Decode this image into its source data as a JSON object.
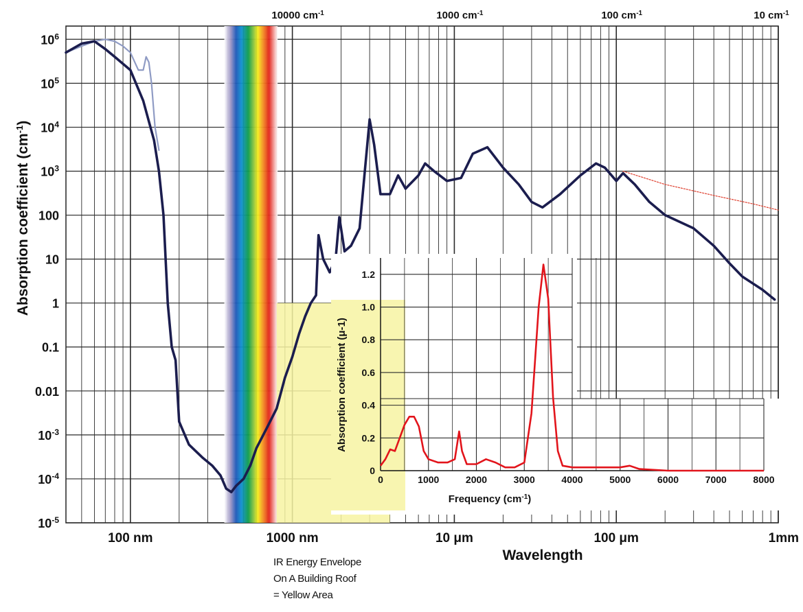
{
  "chart_data": [
    {
      "type": "line",
      "title": "",
      "xlabel": "Wavelength",
      "ylabel": "Absorption coefficient (cm-1)",
      "x_scale": "log",
      "y_scale": "log",
      "xlim_m": [
        4e-08,
        0.001
      ],
      "ylim_cm_inv": [
        1e-05,
        2000000.0
      ],
      "grid": true,
      "x_ticks": [
        {
          "value_m": 1e-07,
          "label": "100 nm"
        },
        {
          "value_m": 1e-06,
          "label": "1000 nm"
        },
        {
          "value_m": 1e-05,
          "label": "10 μm"
        },
        {
          "value_m": 0.0001,
          "label": "100 μm"
        },
        {
          "value_m": 0.001,
          "label": "1mm"
        }
      ],
      "top_axis_ticks": [
        {
          "value_m": 1e-06,
          "label": "10000 cm-1"
        },
        {
          "value_m": 1e-05,
          "label": "1000 cm-1"
        },
        {
          "value_m": 0.0001,
          "label": "100 cm-1"
        },
        {
          "value_m": 0.001,
          "label": "10 cm-1"
        }
      ],
      "y_ticks": [
        {
          "value": 1000000.0,
          "base": "10",
          "exp": "6",
          "label": ""
        },
        {
          "value": 100000.0,
          "base": "10",
          "exp": "5",
          "label": ""
        },
        {
          "value": 10000.0,
          "base": "10",
          "exp": "4",
          "label": ""
        },
        {
          "value": 1000.0,
          "base": "10",
          "exp": "3",
          "label": ""
        },
        {
          "value": 100,
          "label": "100"
        },
        {
          "value": 10,
          "label": "10"
        },
        {
          "value": 1,
          "label": "1"
        },
        {
          "value": 0.1,
          "label": "0.1"
        },
        {
          "value": 0.01,
          "label": "0.01"
        },
        {
          "value": 0.001,
          "base": "10",
          "exp": "-3",
          "label": ""
        },
        {
          "value": 0.0001,
          "base": "10",
          "exp": "-4",
          "label": ""
        },
        {
          "value": 1e-05,
          "base": "10",
          "exp": "-5",
          "label": ""
        }
      ],
      "visible_band_m": [
        3.8e-07,
        7.5e-07
      ],
      "yellow_area": {
        "x_m": [
          8e-07,
          4e-06
        ],
        "y_top": 1
      },
      "series": [
        {
          "name": "",
          "color": "#1b1d4e",
          "points": [
            [
              4e-08,
              500000.0
            ],
            [
              5e-08,
              800000.0
            ],
            [
              6e-08,
              900000.0
            ],
            [
              7e-08,
              600000.0
            ],
            [
              8e-08,
              400000.0
            ],
            [
              1e-07,
              200000.0
            ],
            [
              1.2e-07,
              40000.0
            ],
            [
              1.4e-07,
              5000.0
            ],
            [
              1.5e-07,
              1000.0
            ],
            [
              1.6e-07,
              100
            ],
            [
              1.7e-07,
              1
            ],
            [
              1.8e-07,
              0.1
            ],
            [
              1.9e-07,
              0.05
            ],
            [
              2e-07,
              0.002
            ],
            [
              2.3e-07,
              0.0006
            ],
            [
              2.8e-07,
              0.0003
            ],
            [
              3.2e-07,
              0.0002
            ],
            [
              3.6e-07,
              0.00012
            ],
            [
              3.9e-07,
              6e-05
            ],
            [
              4.2e-07,
              5e-05
            ],
            [
              4.5e-07,
              7e-05
            ],
            [
              5e-07,
              0.0001
            ],
            [
              5.5e-07,
              0.0002
            ],
            [
              6e-07,
              0.0005
            ],
            [
              7e-07,
              0.0015
            ],
            [
              8e-07,
              0.004
            ],
            [
              9e-07,
              0.02
            ],
            [
              1e-06,
              0.06
            ],
            [
              1.1e-06,
              0.2
            ],
            [
              1.2e-06,
              0.5
            ],
            [
              1.3e-06,
              1
            ],
            [
              1.4e-06,
              1.5
            ],
            [
              1.45e-06,
              35
            ],
            [
              1.55e-06,
              10
            ],
            [
              1.7e-06,
              5
            ],
            [
              1.85e-06,
              10
            ],
            [
              1.95e-06,
              90
            ],
            [
              2.1e-06,
              15
            ],
            [
              2.3e-06,
              20
            ],
            [
              2.6e-06,
              50
            ],
            [
              2.8e-06,
              1000
            ],
            [
              3e-06,
              15000.0
            ],
            [
              3.2e-06,
              4000
            ],
            [
              3.5e-06,
              300
            ],
            [
              4e-06,
              300
            ],
            [
              4.5e-06,
              800
            ],
            [
              5e-06,
              400
            ],
            [
              6e-06,
              800
            ],
            [
              6.6e-06,
              1500
            ],
            [
              7.5e-06,
              1000
            ],
            [
              9e-06,
              600
            ],
            [
              1.1e-05,
              700
            ],
            [
              1.3e-05,
              2500
            ],
            [
              1.6e-05,
              3500
            ],
            [
              2e-05,
              1200
            ],
            [
              2.5e-05,
              500
            ],
            [
              3e-05,
              200
            ],
            [
              3.5e-05,
              150
            ],
            [
              4.5e-05,
              300
            ],
            [
              6e-05,
              800
            ],
            [
              7.5e-05,
              1500
            ],
            [
              8.5e-05,
              1200
            ],
            [
              0.0001,
              600
            ],
            [
              0.00011,
              900
            ],
            [
              0.00013,
              500
            ],
            [
              0.00016,
              200
            ],
            [
              0.0002,
              100
            ],
            [
              0.0003,
              50
            ],
            [
              0.0004,
              20
            ],
            [
              0.0005,
              8
            ],
            [
              0.0006,
              4
            ],
            [
              0.0008,
              2
            ],
            [
              0.00095,
              1.2
            ]
          ]
        },
        {
          "name": "",
          "color": "#8f9bc4",
          "points": [
            [
              4e-08,
              500000.0
            ],
            [
              5e-08,
              700000.0
            ],
            [
              6e-08,
              900000.0
            ],
            [
              7e-08,
              1000000.0
            ],
            [
              8e-08,
              900000.0
            ],
            [
              9e-08,
              700000.0
            ],
            [
              1e-07,
              500000.0
            ],
            [
              1.12e-07,
              200000.0
            ],
            [
              1.2e-07,
              200000.0
            ],
            [
              1.25e-07,
              400000.0
            ],
            [
              1.3e-07,
              300000.0
            ],
            [
              1.35e-07,
              100000.0
            ],
            [
              1.42e-07,
              10000.0
            ],
            [
              1.5e-07,
              3000
            ]
          ]
        },
        {
          "name": "",
          "color": "#e04a3a",
          "dashed": true,
          "points": [
            [
              0.00011,
              1000
            ],
            [
              0.0002,
              500
            ],
            [
              0.0004,
              280
            ],
            [
              0.0007,
              180
            ],
            [
              0.001,
              130
            ]
          ]
        }
      ]
    },
    {
      "type": "line",
      "title": "",
      "xlabel": "Frequency (cm-1)",
      "ylabel": "Absorption coefficient (μ-1)",
      "xlim": [
        0,
        8000
      ],
      "ylim": [
        0,
        1.3
      ],
      "grid": true,
      "x_ticks": [
        0,
        1000,
        2000,
        3000,
        4000,
        5000,
        6000,
        7000,
        8000
      ],
      "y_ticks": [
        0,
        0.2,
        0.4,
        0.6,
        0.8,
        1.0,
        1.2
      ],
      "series": [
        {
          "name": "",
          "color": "#e2141b",
          "points": [
            [
              0,
              0.03
            ],
            [
              100,
              0.07
            ],
            [
              200,
              0.13
            ],
            [
              300,
              0.12
            ],
            [
              400,
              0.2
            ],
            [
              500,
              0.28
            ],
            [
              600,
              0.33
            ],
            [
              700,
              0.33
            ],
            [
              800,
              0.27
            ],
            [
              900,
              0.12
            ],
            [
              1000,
              0.07
            ],
            [
              1200,
              0.05
            ],
            [
              1400,
              0.05
            ],
            [
              1550,
              0.07
            ],
            [
              1640,
              0.24
            ],
            [
              1700,
              0.12
            ],
            [
              1800,
              0.04
            ],
            [
              2000,
              0.04
            ],
            [
              2200,
              0.07
            ],
            [
              2400,
              0.05
            ],
            [
              2600,
              0.02
            ],
            [
              2800,
              0.02
            ],
            [
              3000,
              0.05
            ],
            [
              3150,
              0.35
            ],
            [
              3300,
              1.0
            ],
            [
              3400,
              1.26
            ],
            [
              3500,
              1.05
            ],
            [
              3600,
              0.45
            ],
            [
              3700,
              0.12
            ],
            [
              3800,
              0.03
            ],
            [
              4000,
              0.02
            ],
            [
              5000,
              0.02
            ],
            [
              5200,
              0.03
            ],
            [
              5400,
              0.01
            ],
            [
              6000,
              0.0
            ],
            [
              7000,
              0.0
            ],
            [
              8000,
              0.0
            ]
          ]
        }
      ]
    }
  ],
  "note_lines": [
    "IR Energy Envelope",
    "On A Building Roof",
    " = Yellow Area"
  ]
}
